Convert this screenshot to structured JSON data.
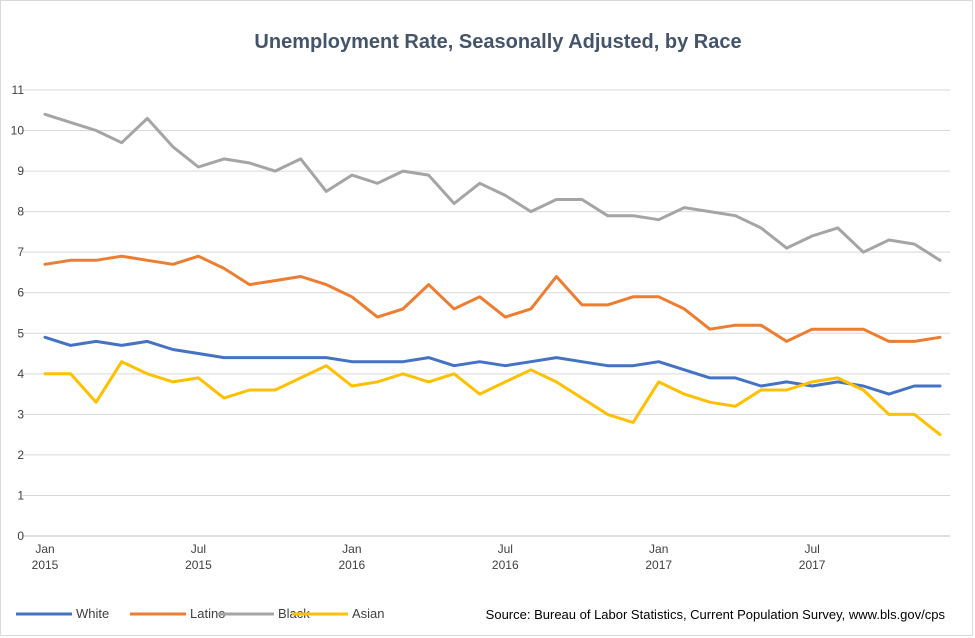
{
  "chart_data": {
    "type": "line",
    "title": "Unemployment Rate, Seasonally Adjusted, by Race",
    "source": "Source: Bureau of Labor Statistics, Current Population Survey, www.bls.gov/cps",
    "xlabel": "",
    "ylabel": "",
    "ylim": [
      0,
      11
    ],
    "yticks": [
      0,
      1,
      2,
      3,
      4,
      5,
      6,
      7,
      8,
      9,
      10,
      11
    ],
    "grid": true,
    "legend": "bottom-left",
    "x": [
      "2015-01",
      "2015-02",
      "2015-03",
      "2015-04",
      "2015-05",
      "2015-06",
      "2015-07",
      "2015-08",
      "2015-09",
      "2015-10",
      "2015-11",
      "2015-12",
      "2016-01",
      "2016-02",
      "2016-03",
      "2016-04",
      "2016-05",
      "2016-06",
      "2016-07",
      "2016-08",
      "2016-09",
      "2016-10",
      "2016-11",
      "2016-12",
      "2017-01",
      "2017-02",
      "2017-03",
      "2017-04",
      "2017-05",
      "2017-06",
      "2017-07",
      "2017-08",
      "2017-09",
      "2017-10",
      "2017-11",
      "2017-12"
    ],
    "xticks": [
      {
        "month": "Jan",
        "year": "2015",
        "at": "2015-01"
      },
      {
        "month": "Jul",
        "year": "2015",
        "at": "2015-07"
      },
      {
        "month": "Jan",
        "year": "2016",
        "at": "2016-01"
      },
      {
        "month": "Jul",
        "year": "2016",
        "at": "2016-07"
      },
      {
        "month": "Jan",
        "year": "2017",
        "at": "2017-01"
      },
      {
        "month": "Jul",
        "year": "2017",
        "at": "2017-07"
      }
    ],
    "series": [
      {
        "name": "White",
        "color": "#4472c4",
        "values": [
          4.9,
          4.7,
          4.8,
          4.7,
          4.8,
          4.6,
          4.5,
          4.4,
          4.4,
          4.4,
          4.4,
          4.4,
          4.3,
          4.3,
          4.3,
          4.4,
          4.2,
          4.3,
          4.2,
          4.3,
          4.4,
          4.3,
          4.2,
          4.2,
          4.3,
          4.1,
          3.9,
          3.9,
          3.7,
          3.8,
          3.7,
          3.8,
          3.7,
          3.5,
          3.7,
          3.7
        ]
      },
      {
        "name": "Latino",
        "color": "#ed7d31",
        "values": [
          6.7,
          6.8,
          6.8,
          6.9,
          6.8,
          6.7,
          6.9,
          6.6,
          6.2,
          6.3,
          6.4,
          6.2,
          5.9,
          5.4,
          5.6,
          6.2,
          5.6,
          5.9,
          5.4,
          5.6,
          6.4,
          5.7,
          5.7,
          5.9,
          5.9,
          5.6,
          5.1,
          5.2,
          5.2,
          4.8,
          5.1,
          5.1,
          5.1,
          4.8,
          4.8,
          4.9
        ]
      },
      {
        "name": "Black",
        "color": "#a5a5a5",
        "values": [
          10.4,
          10.2,
          10.0,
          9.7,
          10.3,
          9.6,
          9.1,
          9.3,
          9.2,
          9.0,
          9.3,
          8.5,
          8.9,
          8.7,
          9.0,
          8.9,
          8.2,
          8.7,
          8.4,
          8.0,
          8.3,
          8.3,
          7.9,
          7.9,
          7.8,
          8.1,
          8.0,
          7.9,
          7.6,
          7.1,
          7.4,
          7.6,
          7.0,
          7.3,
          7.2,
          6.8
        ]
      },
      {
        "name": "Asian",
        "color": "#ffc000",
        "values": [
          4.0,
          4.0,
          3.3,
          4.3,
          4.0,
          3.8,
          3.9,
          3.4,
          3.6,
          3.6,
          3.9,
          4.2,
          3.7,
          3.8,
          4.0,
          3.8,
          4.0,
          3.5,
          3.8,
          4.1,
          3.8,
          3.4,
          3.0,
          2.8,
          3.8,
          3.5,
          3.3,
          3.2,
          3.6,
          3.6,
          3.8,
          3.9,
          3.6,
          3.0,
          3.0,
          2.5
        ]
      }
    ]
  }
}
